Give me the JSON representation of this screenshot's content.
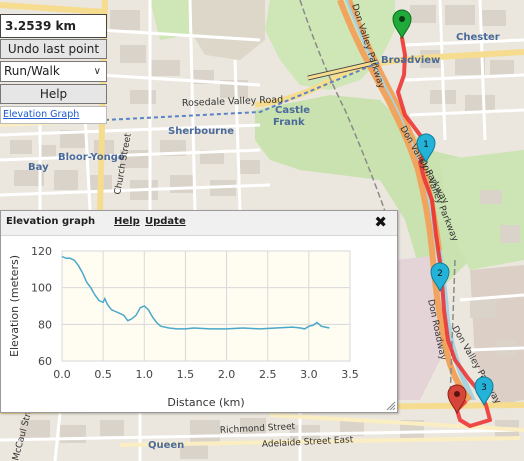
{
  "map": {
    "labels": {
      "chester": "Chester",
      "broadview": "Broadview",
      "rosedale_valley_road": "Rosedale Valley Road",
      "castle_frank": "Castle Frank",
      "sherbourne": "Sherbourne",
      "bay": "Bay",
      "bloor_yonge": "Bloor-Yonge",
      "church_street": "Church Street",
      "don_valley_parkway_north": "Don Valley Parkway",
      "don_valley_parkway_mid": "Don Valley Parkway",
      "don_valley_parkway_south": "Don Valley Parkway",
      "don_valley_parkway_top": "Don Valley Parkway",
      "queen": "Queen",
      "richmond_street": "Richmond Street",
      "adelaide_street": "Adelaide Street East",
      "mccaul_street": "McCaul Street",
      "don_roadway": "Don Roadway"
    },
    "markers": [
      {
        "label": "",
        "color": "#1faa3a",
        "type": "start"
      },
      {
        "label": "1",
        "color": "#23b3d9",
        "type": "km"
      },
      {
        "label": "2",
        "color": "#23b3d9",
        "type": "km"
      },
      {
        "label": "3",
        "color": "#23b3d9",
        "type": "km"
      },
      {
        "label": "",
        "color": "#d6453a",
        "type": "end"
      }
    ],
    "route_color": "#ee2b2b"
  },
  "controls": {
    "distance": "3.2539 km",
    "undo_label": "Undo last point",
    "mode_value": "Run/Walk",
    "help_label": "Help",
    "elevation_link": "Elevation Graph"
  },
  "elevation_panel": {
    "title": "Elevation graph",
    "help": "Help",
    "update": "Update",
    "close_icon": "close-icon"
  },
  "chart_data": {
    "type": "line",
    "xlabel": "Distance (km)",
    "ylabel": "Elevation (meters)",
    "xlim": [
      0,
      3.5
    ],
    "ylim": [
      60,
      120
    ],
    "xticks": [
      "0.0",
      "0.5",
      "1.0",
      "1.5",
      "2.0",
      "2.5",
      "3.0",
      "3.5"
    ],
    "yticks": [
      "60",
      "80",
      "100",
      "120"
    ],
    "grid": true,
    "line_color": "#4aa8c9",
    "x": [
      0.0,
      0.05,
      0.1,
      0.15,
      0.2,
      0.25,
      0.3,
      0.35,
      0.4,
      0.45,
      0.5,
      0.52,
      0.55,
      0.6,
      0.65,
      0.7,
      0.75,
      0.8,
      0.85,
      0.9,
      0.95,
      1.0,
      1.05,
      1.1,
      1.15,
      1.2,
      1.3,
      1.4,
      1.5,
      1.6,
      1.8,
      2.0,
      2.2,
      2.4,
      2.6,
      2.8,
      2.9,
      2.95,
      3.0,
      3.05,
      3.1,
      3.15,
      3.2,
      3.25
    ],
    "y": [
      117,
      116,
      116,
      115,
      112,
      108,
      103,
      100,
      96,
      93,
      92,
      94,
      91,
      88,
      87,
      86,
      85,
      82,
      83,
      85,
      89,
      90,
      88,
      84,
      81,
      79,
      78,
      77.5,
      77.5,
      78,
      77.5,
      77.5,
      78,
      77.5,
      78,
      78.5,
      78,
      77.5,
      79,
      79.5,
      81,
      79,
      78.5,
      78
    ]
  }
}
